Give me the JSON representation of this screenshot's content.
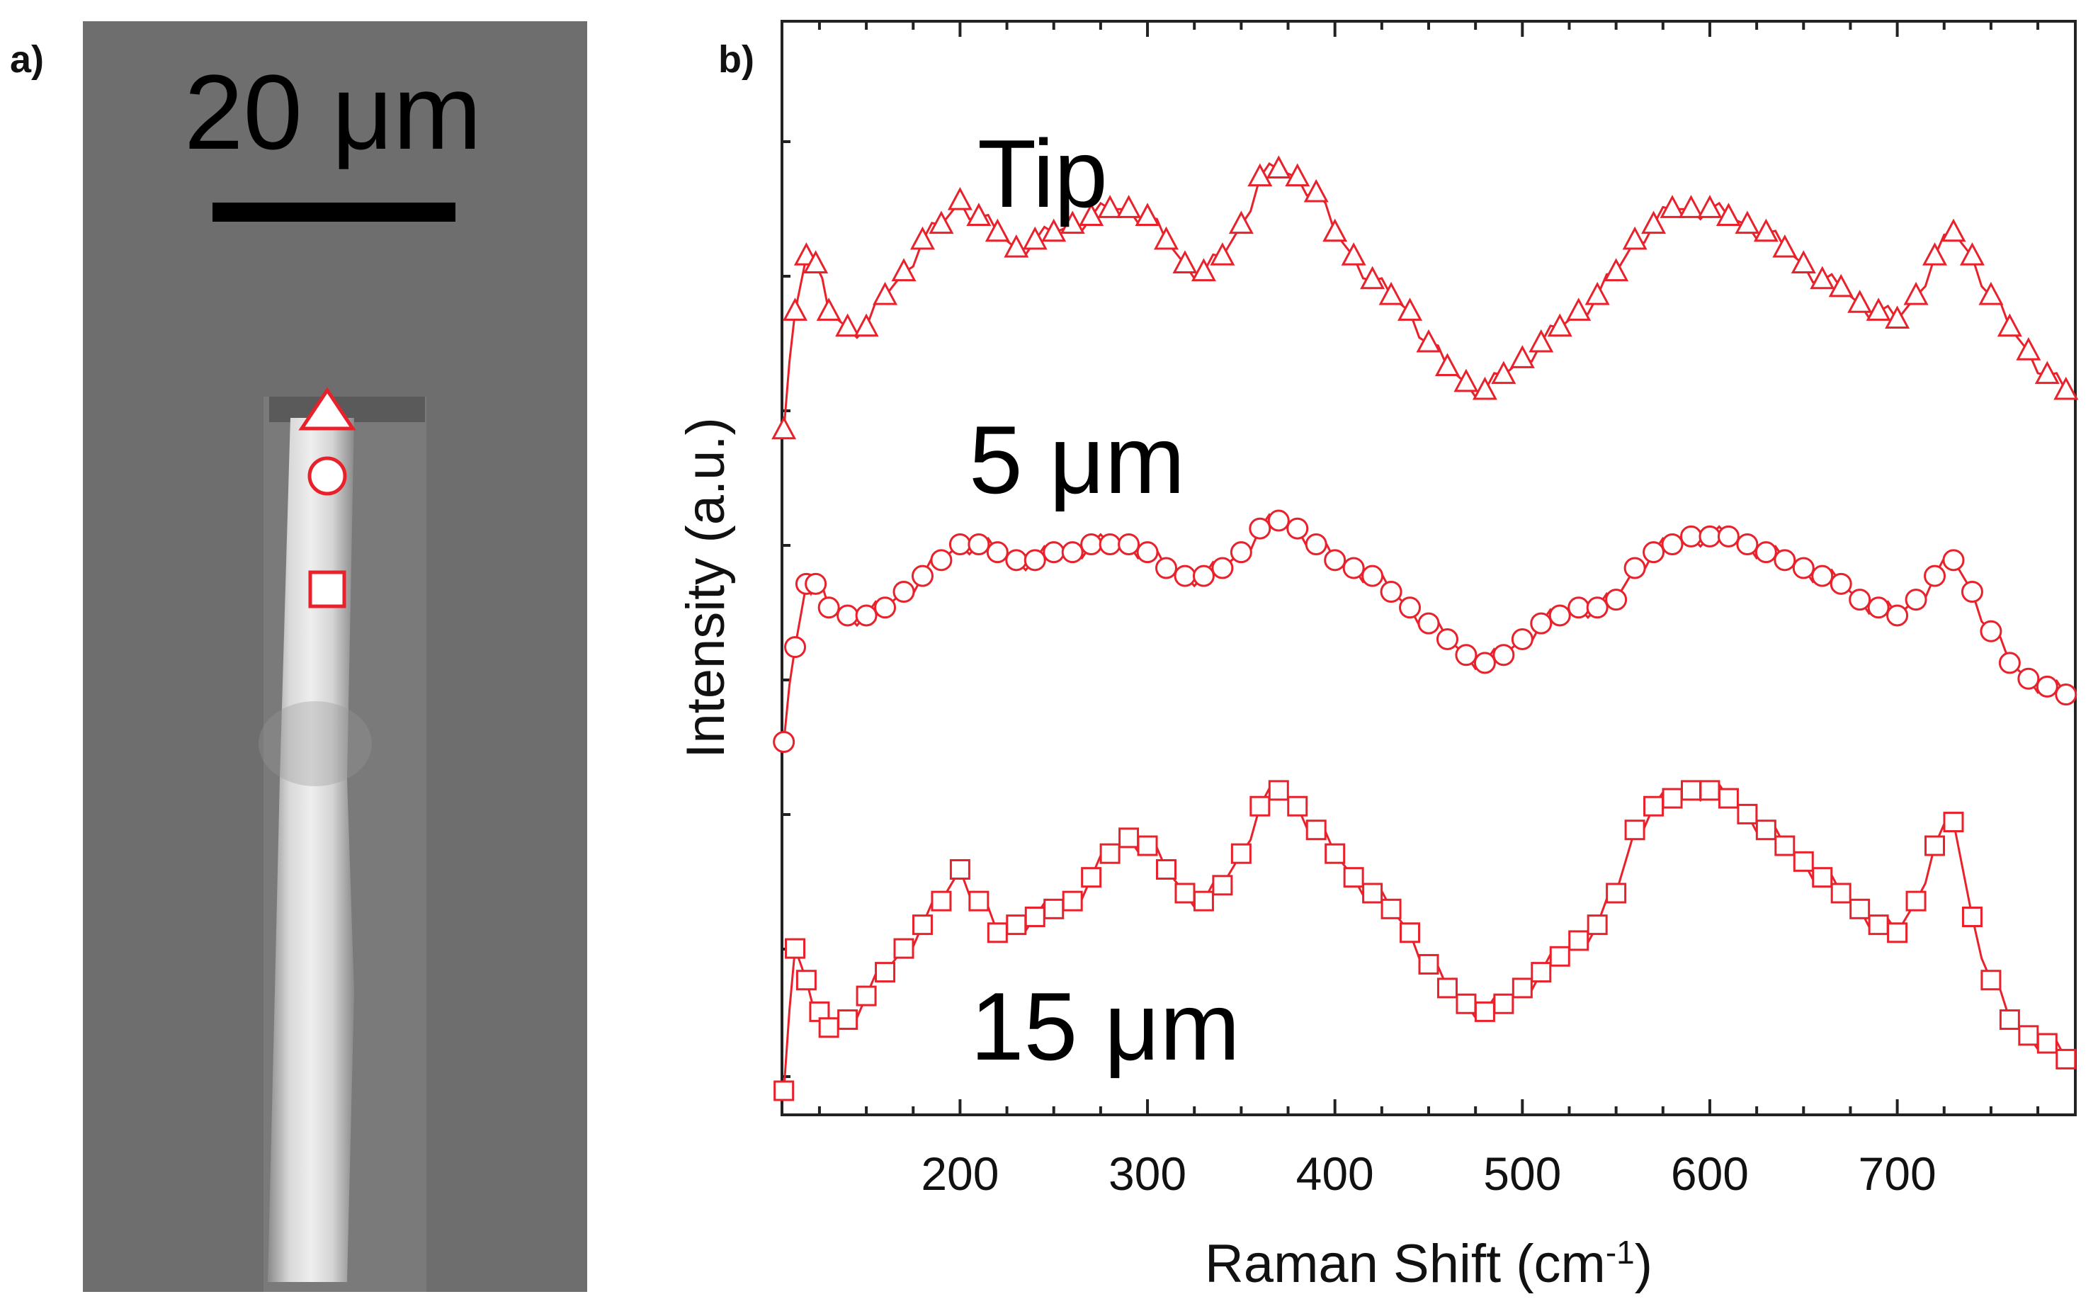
{
  "panel_a": {
    "label": "a)",
    "scale_bar_text": "20 μm",
    "marker_color": "#e8212b",
    "markers": [
      "triangle",
      "circle",
      "square"
    ]
  },
  "panel_b": {
    "label": "b)"
  },
  "chart_data": {
    "type": "line",
    "title": "",
    "xlabel": "Raman Shift (cm",
    "xlabel_superscript": "-1",
    "xlabel_suffix": ")",
    "ylabel": "Intensity (a.u.)",
    "xlim": [
      105,
      795
    ],
    "ylim": [
      0,
      100
    ],
    "x_ticks": [
      200,
      300,
      400,
      500,
      600,
      700
    ],
    "x_tick_labels": [
      "200",
      "300",
      "400",
      "500",
      "600",
      "700"
    ],
    "series_color": "#e8212b",
    "series": [
      {
        "name": "Tip",
        "marker": "triangle",
        "points": [
          [
            106,
            45
          ],
          [
            112,
            60
          ],
          [
            118,
            67
          ],
          [
            123,
            66
          ],
          [
            130,
            60
          ],
          [
            140,
            58
          ],
          [
            150,
            58
          ],
          [
            160,
            62
          ],
          [
            170,
            65
          ],
          [
            180,
            69
          ],
          [
            190,
            71
          ],
          [
            200,
            74
          ],
          [
            210,
            72
          ],
          [
            220,
            70
          ],
          [
            230,
            68
          ],
          [
            240,
            69
          ],
          [
            250,
            70
          ],
          [
            260,
            71
          ],
          [
            270,
            72
          ],
          [
            280,
            73
          ],
          [
            290,
            73
          ],
          [
            300,
            72
          ],
          [
            310,
            69
          ],
          [
            320,
            66
          ],
          [
            330,
            65
          ],
          [
            340,
            67
          ],
          [
            350,
            71
          ],
          [
            360,
            77
          ],
          [
            370,
            78
          ],
          [
            380,
            77
          ],
          [
            390,
            75
          ],
          [
            400,
            70
          ],
          [
            410,
            67
          ],
          [
            420,
            64
          ],
          [
            430,
            62
          ],
          [
            440,
            60
          ],
          [
            450,
            56
          ],
          [
            460,
            53
          ],
          [
            470,
            51
          ],
          [
            480,
            50
          ],
          [
            490,
            52
          ],
          [
            500,
            54
          ],
          [
            510,
            56
          ],
          [
            520,
            58
          ],
          [
            530,
            60
          ],
          [
            540,
            62
          ],
          [
            550,
            65
          ],
          [
            560,
            69
          ],
          [
            570,
            71
          ],
          [
            580,
            73
          ],
          [
            590,
            73
          ],
          [
            600,
            73
          ],
          [
            610,
            72
          ],
          [
            620,
            71
          ],
          [
            630,
            70
          ],
          [
            640,
            68
          ],
          [
            650,
            66
          ],
          [
            660,
            64
          ],
          [
            670,
            63
          ],
          [
            680,
            61
          ],
          [
            690,
            60
          ],
          [
            700,
            59
          ],
          [
            710,
            62
          ],
          [
            720,
            67
          ],
          [
            730,
            70
          ],
          [
            740,
            67
          ],
          [
            750,
            62
          ],
          [
            760,
            58
          ],
          [
            770,
            55
          ],
          [
            780,
            52
          ],
          [
            790,
            50
          ]
        ]
      },
      {
        "name": "5 μm",
        "marker": "circle",
        "points": [
          [
            106,
            28
          ],
          [
            112,
            40
          ],
          [
            118,
            48
          ],
          [
            123,
            48
          ],
          [
            130,
            45
          ],
          [
            140,
            44
          ],
          [
            150,
            44
          ],
          [
            160,
            45
          ],
          [
            170,
            47
          ],
          [
            180,
            49
          ],
          [
            190,
            51
          ],
          [
            200,
            53
          ],
          [
            210,
            53
          ],
          [
            220,
            52
          ],
          [
            230,
            51
          ],
          [
            240,
            51
          ],
          [
            250,
            52
          ],
          [
            260,
            52
          ],
          [
            270,
            53
          ],
          [
            280,
            53
          ],
          [
            290,
            53
          ],
          [
            300,
            52
          ],
          [
            310,
            50
          ],
          [
            320,
            49
          ],
          [
            330,
            49
          ],
          [
            340,
            50
          ],
          [
            350,
            52
          ],
          [
            360,
            55
          ],
          [
            370,
            56
          ],
          [
            380,
            55
          ],
          [
            390,
            53
          ],
          [
            400,
            51
          ],
          [
            410,
            50
          ],
          [
            420,
            49
          ],
          [
            430,
            47
          ],
          [
            440,
            45
          ],
          [
            450,
            43
          ],
          [
            460,
            41
          ],
          [
            470,
            39
          ],
          [
            480,
            38
          ],
          [
            490,
            39
          ],
          [
            500,
            41
          ],
          [
            510,
            43
          ],
          [
            520,
            44
          ],
          [
            530,
            45
          ],
          [
            540,
            45
          ],
          [
            550,
            46
          ],
          [
            560,
            50
          ],
          [
            570,
            52
          ],
          [
            580,
            53
          ],
          [
            590,
            54
          ],
          [
            600,
            54
          ],
          [
            610,
            54
          ],
          [
            620,
            53
          ],
          [
            630,
            52
          ],
          [
            640,
            51
          ],
          [
            650,
            50
          ],
          [
            660,
            49
          ],
          [
            670,
            48
          ],
          [
            680,
            46
          ],
          [
            690,
            45
          ],
          [
            700,
            44
          ],
          [
            710,
            46
          ],
          [
            720,
            49
          ],
          [
            730,
            51
          ],
          [
            740,
            47
          ],
          [
            750,
            42
          ],
          [
            760,
            38
          ],
          [
            770,
            36
          ],
          [
            780,
            35
          ],
          [
            790,
            34
          ]
        ]
      },
      {
        "name": "15 μm",
        "marker": "square",
        "points": [
          [
            106,
            0
          ],
          [
            112,
            18
          ],
          [
            118,
            14
          ],
          [
            125,
            10
          ],
          [
            130,
            8
          ],
          [
            140,
            9
          ],
          [
            150,
            12
          ],
          [
            160,
            15
          ],
          [
            170,
            18
          ],
          [
            180,
            21
          ],
          [
            190,
            24
          ],
          [
            200,
            28
          ],
          [
            210,
            24
          ],
          [
            220,
            20
          ],
          [
            230,
            21
          ],
          [
            240,
            22
          ],
          [
            250,
            23
          ],
          [
            260,
            24
          ],
          [
            270,
            27
          ],
          [
            280,
            30
          ],
          [
            290,
            32
          ],
          [
            300,
            31
          ],
          [
            310,
            28
          ],
          [
            320,
            25
          ],
          [
            330,
            24
          ],
          [
            340,
            26
          ],
          [
            350,
            30
          ],
          [
            360,
            36
          ],
          [
            370,
            38
          ],
          [
            380,
            36
          ],
          [
            390,
            33
          ],
          [
            400,
            30
          ],
          [
            410,
            27
          ],
          [
            420,
            25
          ],
          [
            430,
            23
          ],
          [
            440,
            20
          ],
          [
            450,
            16
          ],
          [
            460,
            13
          ],
          [
            470,
            11
          ],
          [
            480,
            10
          ],
          [
            490,
            11
          ],
          [
            500,
            13
          ],
          [
            510,
            15
          ],
          [
            520,
            17
          ],
          [
            530,
            19
          ],
          [
            540,
            21
          ],
          [
            550,
            25
          ],
          [
            560,
            33
          ],
          [
            570,
            36
          ],
          [
            580,
            37
          ],
          [
            590,
            38
          ],
          [
            600,
            38
          ],
          [
            610,
            37
          ],
          [
            620,
            35
          ],
          [
            630,
            33
          ],
          [
            640,
            31
          ],
          [
            650,
            29
          ],
          [
            660,
            27
          ],
          [
            670,
            25
          ],
          [
            680,
            23
          ],
          [
            690,
            21
          ],
          [
            700,
            20
          ],
          [
            710,
            24
          ],
          [
            720,
            31
          ],
          [
            730,
            34
          ],
          [
            740,
            22
          ],
          [
            750,
            14
          ],
          [
            760,
            9
          ],
          [
            770,
            7
          ],
          [
            780,
            6
          ],
          [
            790,
            4
          ]
        ]
      }
    ]
  }
}
